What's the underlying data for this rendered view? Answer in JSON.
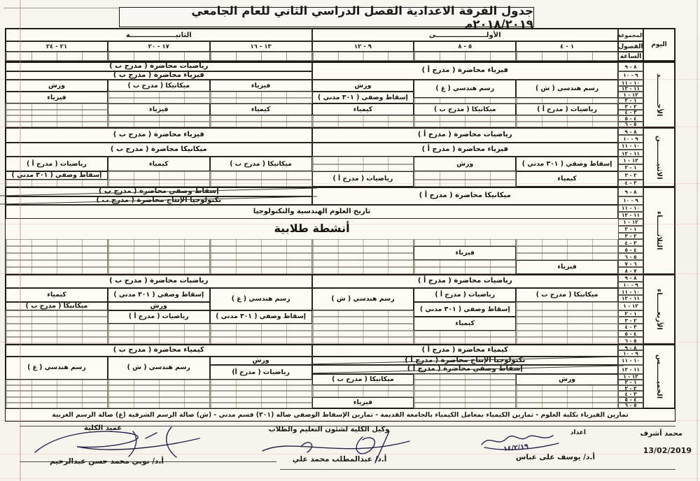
{
  "title": "جدول الفرقة الاعدادية الفصل الدراسي الثاني للعام الجامعي ٢٠١٨/٢٠١٩م",
  "colors": {
    "paper": "#f6f4ed",
    "ink": "#1c1a15",
    "scan_line_pink": "#e06a8c",
    "signature_ink": "#26244a"
  },
  "header": {
    "day_label": "اليوم",
    "group_label": "المجموعة",
    "classes_label": "الفصول",
    "hour_label": "الساعة",
    "first_group": "الأولـــــــــــــــــــــى",
    "second_group": "الثانيـــــــــــــــــــة",
    "class_ranges": [
      "١ - ٤",
      "٥ - ٨",
      "٩ - ١٢",
      "١٣ - ١٦",
      "١٧ - ٢٠",
      "٢١ - ٢٤"
    ]
  },
  "days": [
    {
      "name": "الأحـــــــــــد",
      "hours": [
        "٨ - ٩",
        "٩ - ١٠",
        "١٠ - ١١",
        "١١ - ١٢",
        "١٢ - ١",
        "١ - ٢",
        "٢ - ٣",
        "٣ - ٤",
        "٤ - ٥",
        "٥ - ٦"
      ],
      "cells": [
        {
          "text": "فيزياء محاضرة ( مدرج أ )",
          "col": 1,
          "colspan": 3,
          "row": 1,
          "rowspan": 2
        },
        {
          "text": "رياضيات محاضرة ( مدرج ب )",
          "col": 4,
          "colspan": 3,
          "row": 1,
          "rowspan": 1
        },
        {
          "text": "فيزياء محاضرة ( مدرج ب )",
          "col": 4,
          "colspan": 3,
          "row": 2,
          "rowspan": 1
        },
        {
          "text": "رسم هندسي ( ش )",
          "col": 1,
          "row": 3,
          "rowspan": 3
        },
        {
          "text": "رسم هندسي ( غ )",
          "col": 2,
          "row": 3,
          "rowspan": 3
        },
        {
          "text": "ورش",
          "col": 3,
          "row": 3,
          "rowspan": 2
        },
        {
          "text": "إسقاط وصفي ( ٣٠١ مدني )",
          "col": 3,
          "row": 5,
          "rowspan": 2
        },
        {
          "text": "فيزياء",
          "col": 4,
          "row": 3,
          "rowspan": 2
        },
        {
          "text": "ميكانيكا ( مدرج ب )",
          "col": 5,
          "row": 3,
          "rowspan": 2
        },
        {
          "text": "ورش",
          "col": 6,
          "row": 3,
          "rowspan": 2
        },
        {
          "text": "فيزياء",
          "col": 6,
          "row": 5,
          "rowspan": 2
        },
        {
          "text": "رياضيات ( مدرج أ )",
          "col": 1,
          "row": 7,
          "rowspan": 2
        },
        {
          "text": "ميكانيكا ( مدرج ب )",
          "col": 2,
          "row": 7,
          "rowspan": 2
        },
        {
          "text": "كيمياء",
          "col": 3,
          "row": 7,
          "rowspan": 2
        },
        {
          "text": "كيمياء",
          "col": 4,
          "row": 7,
          "rowspan": 2
        },
        {
          "text": "فيزياء",
          "col": 5,
          "row": 7,
          "rowspan": 2
        }
      ]
    },
    {
      "name": "الاثنيـــــــــن",
      "hours": [
        "٨ - ٩",
        "٩ - ١٠",
        "١٠ - ١١",
        "١١ - ١٢",
        "١٢ - ١",
        "١ - ٢",
        "٢ - ٣",
        "٣ - ٤"
      ],
      "cells": [
        {
          "text": "رياضيات محاضرة ( مدرج أ )",
          "col": 1,
          "colspan": 3,
          "row": 1,
          "rowspan": 2
        },
        {
          "text": "فيزياء محاضرة ( مدرج ب )",
          "col": 4,
          "colspan": 3,
          "row": 1,
          "rowspan": 2
        },
        {
          "text": "فيزياء محاضرة ( مدرج أ )",
          "col": 1,
          "colspan": 3,
          "row": 3,
          "rowspan": 2
        },
        {
          "text": "ميكانيكا محاضرة ( مدرج ب )",
          "col": 4,
          "colspan": 3,
          "row": 3,
          "rowspan": 2
        },
        {
          "text": "إسقاط وصفي ( ٣٠١ مدني )",
          "col": 1,
          "row": 5,
          "rowspan": 2
        },
        {
          "text": "ورش",
          "col": 2,
          "row": 5,
          "rowspan": 2
        },
        {
          "text": "ميكانيكا ( مدرج ب )",
          "col": 4,
          "row": 5,
          "rowspan": 2
        },
        {
          "text": "كيمياء",
          "col": 5,
          "row": 5,
          "rowspan": 2
        },
        {
          "text": "رياضيات ( مدرج أ )",
          "col": 6,
          "row": 5,
          "rowspan": 2
        },
        {
          "text": "كيمياء",
          "col": 1,
          "row": 7,
          "rowspan": 2
        },
        {
          "text": "رياضيات ( مدرج أ )",
          "col": 3,
          "row": 7,
          "rowspan": 2
        },
        {
          "text": "إسقاط وصفي ( ٣٠١ مدني )",
          "col": 6,
          "row": 7,
          "rowspan": 1
        }
      ]
    },
    {
      "name": "الثلاثـــــــاء",
      "hours": [
        "٨ - ٩",
        "٩ - ١٠",
        "١٠ - ١١",
        "١١ - ١٢",
        "١٢ - ١",
        "١ - ٢",
        "٢ - ٣",
        "٣ - ٤",
        "٤ - ٥",
        "٥ - ٦",
        "٦ - ٧",
        "٧ - ٨"
      ],
      "cells": [
        {
          "text": "ميكانيكا محاضرة ( مدرج أ )",
          "col": 1,
          "colspan": 3,
          "row": 1,
          "rowspan": 2
        },
        {
          "text": "إسقاط وصفي محاضرة ( مدرج ب )",
          "col": 4,
          "colspan": 3,
          "row": 1,
          "rowspan": 1,
          "crossed": true
        },
        {
          "text": "تكنولوجيا الإنتاج محاضرة ( مدرج ب )",
          "col": 4,
          "colspan": 3,
          "row": 2,
          "rowspan": 1,
          "crossed": true
        },
        {
          "text": "تاريخ العلوم الهندسية والتكنولوجيا",
          "col": 1,
          "colspan": 6,
          "row": 3,
          "rowspan": 2
        },
        {
          "text": "أنشطة طلابية",
          "col": 1,
          "colspan": 6,
          "row": 5,
          "rowspan": 3,
          "big": true,
          "noborder": true
        },
        {
          "text": "فيزياء",
          "col": 2,
          "row": 9,
          "rowspan": 2
        },
        {
          "text": "فيزياء",
          "col": 1,
          "row": 11,
          "rowspan": 2
        }
      ]
    },
    {
      "name": "الأربعـــــــاء",
      "hours": [
        "٨ - ٩",
        "٩ - ١٠",
        "١٠ - ١١",
        "١١ - ١٢",
        "١٢ - ١",
        "١ - ٢",
        "٢ - ٣",
        "٣ - ٤",
        "٤ - ٥",
        "٥ - ٦"
      ],
      "cells": [
        {
          "text": "رياضيات محاضرة ( مدرج أ )",
          "col": 1,
          "colspan": 3,
          "row": 1,
          "rowspan": 2
        },
        {
          "text": "رياضيات محاضرة ( مدرج ب )",
          "col": 4,
          "colspan": 3,
          "row": 1,
          "rowspan": 2
        },
        {
          "text": "ميكانيكا ( مدرج ب )",
          "col": 1,
          "row": 3,
          "rowspan": 2
        },
        {
          "text": "رياضيات ( مدرج أ )",
          "col": 2,
          "row": 3,
          "rowspan": 2
        },
        {
          "text": "رسم هندسي ( ش )",
          "col": 3,
          "row": 3,
          "rowspan": 3
        },
        {
          "text": "رسم هندسي ( غ )",
          "col": 4,
          "row": 3,
          "rowspan": 3
        },
        {
          "text": "إسقاط وصفي ( ٣٠١ مدني )",
          "col": 5,
          "row": 3,
          "rowspan": 2
        },
        {
          "text": "كيمياء",
          "col": 6,
          "row": 3,
          "rowspan": 2
        },
        {
          "text": "إسقاط وصفي ( ٣٠١ مدني )",
          "col": 2,
          "row": 5,
          "rowspan": 2
        },
        {
          "text": "ورش",
          "col": 5,
          "row": 5,
          "rowspan": 1
        },
        {
          "text": "ميكانيكا ( مدرج ب )",
          "col": 6,
          "row": 5,
          "rowspan": 1
        },
        {
          "text": "إسقاط وصفي ( ٣٠١ مدني )",
          "col": 4,
          "row": 6,
          "rowspan": 2
        },
        {
          "text": "رياضيات ( مدرج أ )",
          "col": 5,
          "row": 6,
          "rowspan": 2
        },
        {
          "text": "كيمياء",
          "col": 2,
          "row": 7,
          "rowspan": 2
        }
      ]
    },
    {
      "name": "الخميـــــــس",
      "hours": [
        "٨ - ٩",
        "٩ - ١٠",
        "١٠ - ١١",
        "١١ - ١٢",
        "١٢ - ١",
        "١ - ٢",
        "٢ - ٣",
        "٣ - ٤",
        "٤ - ٥",
        "٥ - ٦"
      ],
      "cells": [
        {
          "text": "كيمياء محاضرة ( مدرج أ )",
          "col": 1,
          "colspan": 3,
          "row": 1,
          "rowspan": 2
        },
        {
          "text": "كيمياء محاضرة ( مدرج ب )",
          "col": 4,
          "colspan": 3,
          "row": 1,
          "rowspan": 2
        },
        {
          "text": "تكنولوجيا الإنتاج محاضرة ( مدرج أ )",
          "col": 1,
          "colspan": 3,
          "row": 3,
          "rowspan": 1,
          "crossed": true
        },
        {
          "text": "إسقاط وصفي محاضرة ( مدرج أ )",
          "col": 1,
          "colspan": 3,
          "row": 4,
          "rowspan": 1,
          "crossed": true
        },
        {
          "text": "ورش",
          "col": 4,
          "row": 3,
          "rowspan": 1
        },
        {
          "text": "رسم هندسي ( ش )",
          "col": 5,
          "row": 3,
          "rowspan": 3
        },
        {
          "text": "رسم هندسي ( غ )",
          "col": 6,
          "row": 3,
          "rowspan": 3
        },
        {
          "text": "رياضيات ( مدرج أ)",
          "col": 4,
          "row": 4,
          "rowspan": 2
        },
        {
          "text": "ورش",
          "col": 1,
          "row": 5,
          "rowspan": 2
        },
        {
          "text": "ميكانيكا ( مدرج ب )",
          "col": 3,
          "row": 5,
          "rowspan": 2
        },
        {
          "text": "فيزياء",
          "col": 3,
          "row": 9,
          "rowspan": 2
        }
      ]
    }
  ],
  "footnote": "تمارين الفيزياء بكلية العلوم - تمارين الكيمياء بمعامل الكيمياء بالجامعة القديمة - تمارين الإسقاط الوصفي صالة (٣٠١) قسم مدني - (ش) صالة الرسم الشرقية (غ) صالة الرسم الغربية",
  "footer": {
    "right_name": "محمد أشرف",
    "date": "13/02/2019",
    "prepared_label": "اعداد",
    "prepared_name": "أ.د/ يوسف على عباس",
    "handwritten_date": "١٤/٢/١٩",
    "vice_dean_title": "وكيل الكلية لشئون التعليم والطلاب",
    "vice_dean_name": "أ.د/ عبدالمطلب محمد علي",
    "dean_title": "عميد الكلية",
    "dean_name": "أ.د/ نوبي محمد حسن عبدالرحيم"
  }
}
